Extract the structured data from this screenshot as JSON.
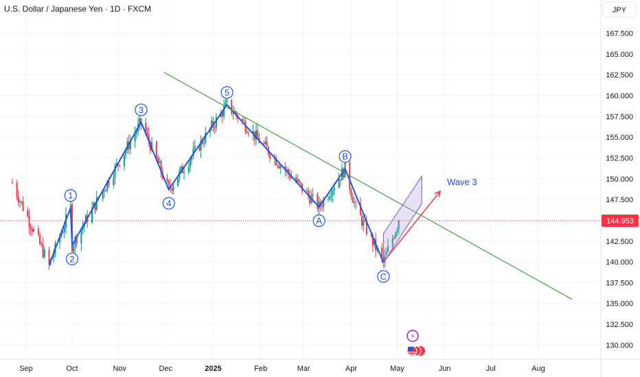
{
  "header": {
    "symbol_title": "U.S. Dollar / Japanese Yen · 1D · FXCM"
  },
  "currency_button": {
    "label": "JPY"
  },
  "colors": {
    "up": "#089981",
    "down": "#f23645",
    "wave": "#1e53e5",
    "trendline": "#43a047",
    "arrow": "#f23645",
    "channel_fill": "#b39ddb",
    "channel_stroke": "#7e57c2",
    "price_tag": "#f23645",
    "dotted": "#f23645",
    "grid": "#f0f3fa"
  },
  "chart_data": {
    "type": "candlestick",
    "title": "U.S. Dollar / Japanese Yen · 1D · FXCM",
    "x_ticks": [
      "Sep",
      "Oct",
      "Nov",
      "Dec",
      "2025",
      "Feb",
      "Mar",
      "Apr",
      "May",
      "Jun",
      "Jul",
      "Aug"
    ],
    "x_tick_dates": [
      "2024-09-01",
      "2024-10-01",
      "2024-11-01",
      "2024-12-01",
      "2025-01-01",
      "2025-02-01",
      "2025-03-01",
      "2025-04-01",
      "2025-05-01",
      "2025-06-01",
      "2025-07-01",
      "2025-08-01"
    ],
    "y_ticks": [
      "130.000",
      "132.500",
      "135.000",
      "137.500",
      "140.000",
      "142.500",
      "145.000",
      "147.500",
      "150.000",
      "152.500",
      "155.000",
      "157.500",
      "160.000",
      "162.500",
      "165.000",
      "167.500"
    ],
    "ylim": [
      128.3,
      171.5
    ],
    "current_price": "144.953",
    "price_path": [
      [
        "2024-08-23",
        149.5
      ],
      [
        "2024-09-16",
        139.6
      ],
      [
        "2024-09-30",
        146.5
      ],
      [
        "2024-10-01",
        142.0
      ],
      [
        "2024-11-15",
        156.8
      ],
      [
        "2024-12-03",
        148.7
      ],
      [
        "2025-01-10",
        158.9
      ],
      [
        "2025-01-22",
        156.5
      ],
      [
        "2025-02-10",
        152.5
      ],
      [
        "2025-03-11",
        146.6
      ],
      [
        "2025-03-28",
        151.2
      ],
      [
        "2025-04-04",
        146.4
      ],
      [
        "2025-04-22",
        139.9
      ],
      [
        "2025-05-02",
        144.95
      ]
    ],
    "waves": [
      {
        "label": "1",
        "date": "2024-09-30",
        "value": 146.5
      },
      {
        "label": "2",
        "date": "2024-10-01",
        "value": 142.0
      },
      {
        "label": "3",
        "date": "2024-11-15",
        "value": 156.8
      },
      {
        "label": "4",
        "date": "2024-12-03",
        "value": 148.7
      },
      {
        "label": "5",
        "date": "2025-01-10",
        "value": 158.9
      },
      {
        "label": "A",
        "date": "2025-03-11",
        "value": 146.6
      },
      {
        "label": "B",
        "date": "2025-03-28",
        "value": 151.2
      },
      {
        "label": "C",
        "date": "2025-04-22",
        "value": 139.9
      }
    ],
    "wave_path": [
      [
        "2024-09-16",
        139.6
      ],
      [
        "2024-09-30",
        146.5
      ],
      [
        "2024-10-01",
        142.0
      ],
      [
        "2024-11-15",
        156.8
      ],
      [
        "2024-12-03",
        148.7
      ],
      [
        "2025-01-10",
        158.9
      ],
      [
        "2025-03-11",
        146.6
      ],
      [
        "2025-03-28",
        151.2
      ],
      [
        "2025-04-22",
        139.9
      ]
    ],
    "trendline": {
      "from": [
        "2024-11-30",
        162.8
      ],
      "to": [
        "2025-08-23",
        135.5
      ]
    },
    "channel": {
      "lower_from": [
        "2025-04-22",
        139.9
      ],
      "lower_to": [
        "2025-05-17",
        147.0
      ],
      "upper_from": [
        "2025-04-22",
        143.4
      ],
      "upper_to": [
        "2025-05-17",
        150.3
      ]
    },
    "projection": {
      "from": [
        "2025-04-22",
        140.0
      ],
      "to": [
        "2025-05-29",
        148.5
      ],
      "label": "Wave 3"
    },
    "events": [
      "⚡"
    ],
    "grid": true
  }
}
